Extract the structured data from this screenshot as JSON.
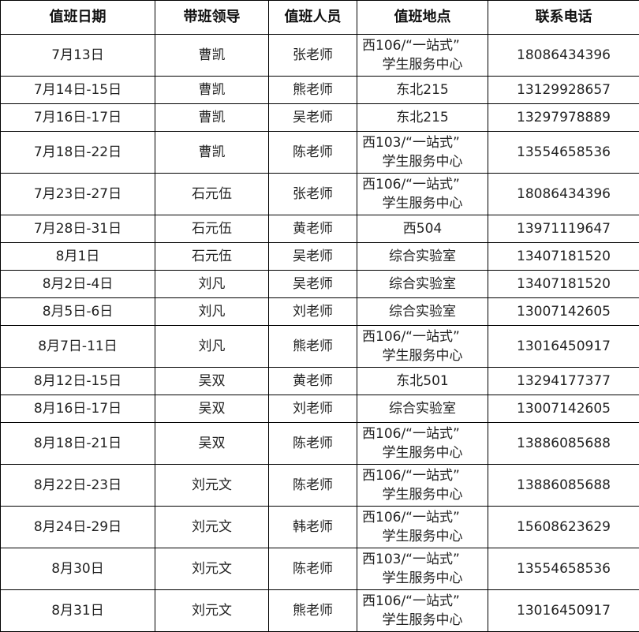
{
  "headers": [
    "值班日期",
    "带班领导",
    "值班人员",
    "值班地点",
    "联系电话"
  ],
  "rows": [
    {
      "date": "7月13日",
      "leader": "曹凯",
      "staff": "张老师",
      "location": [
        "西106/“一站式”",
        "学生服务中心"
      ],
      "phone": "18086434396"
    },
    {
      "date": "7月14日-15日",
      "leader": "曹凯",
      "staff": "熊老师",
      "location": [
        "东北215"
      ],
      "phone": "13129928657"
    },
    {
      "date": "7月16日-17日",
      "leader": "曹凯",
      "staff": "吴老师",
      "location": [
        "东北215"
      ],
      "phone": "13297978889"
    },
    {
      "date": "7月18日-22日",
      "leader": "曹凯",
      "staff": "陈老师",
      "location": [
        "西103/“一站式”",
        "学生服务中心"
      ],
      "phone": "13554658536"
    },
    {
      "date": "7月23日-27日",
      "leader": "石元伍",
      "staff": "张老师",
      "location": [
        "西106/“一站式”",
        "学生服务中心"
      ],
      "phone": "18086434396"
    },
    {
      "date": "7月28日-31日",
      "leader": "石元伍",
      "staff": "黄老师",
      "location": [
        "西504"
      ],
      "phone": "13971119647"
    },
    {
      "date": "8月1日",
      "leader": "石元伍",
      "staff": "吴老师",
      "location": [
        "综合实验室"
      ],
      "phone": "13407181520"
    },
    {
      "date": "8月2日-4日",
      "leader": "刘凡",
      "staff": "吴老师",
      "location": [
        "综合实验室"
      ],
      "phone": "13407181520"
    },
    {
      "date": "8月5日-6日",
      "leader": "刘凡",
      "staff": "刘老师",
      "location": [
        "综合实验室"
      ],
      "phone": "13007142605"
    },
    {
      "date": "8月7日-11日",
      "leader": "刘凡",
      "staff": "熊老师",
      "location": [
        "西106/“一站式”",
        "学生服务中心"
      ],
      "phone": "13016450917"
    },
    {
      "date": "8月12日-15日",
      "leader": "吴双",
      "staff": "黄老师",
      "location": [
        "东北501"
      ],
      "phone": "13294177377"
    },
    {
      "date": "8月16日-17日",
      "leader": "吴双",
      "staff": "刘老师",
      "location": [
        "综合实验室"
      ],
      "phone": "13007142605"
    },
    {
      "date": "8月18日-21日",
      "leader": "吴双",
      "staff": "陈老师",
      "location": [
        "西106/“一站式”",
        "学生服务中心"
      ],
      "phone": "13886085688"
    },
    {
      "date": "8月22日-23日",
      "leader": "刘元文",
      "staff": "陈老师",
      "location": [
        "西106/“一站式”",
        "学生服务中心"
      ],
      "phone": "13886085688"
    },
    {
      "date": "8月24日-29日",
      "leader": "刘元文",
      "staff": "韩老师",
      "location": [
        "西106/“一站式”",
        "学生服务中心"
      ],
      "phone": "15608623629"
    },
    {
      "date": "8月30日",
      "leader": "刘元文",
      "staff": "陈老师",
      "location": [
        "西103/“一站式”",
        "学生服务中心"
      ],
      "phone": "13554658536"
    },
    {
      "date": "8月31日",
      "leader": "刘元文",
      "staff": "熊老师",
      "location": [
        "西106/“一站式”",
        "学生服务中心"
      ],
      "phone": "13016450917"
    }
  ]
}
